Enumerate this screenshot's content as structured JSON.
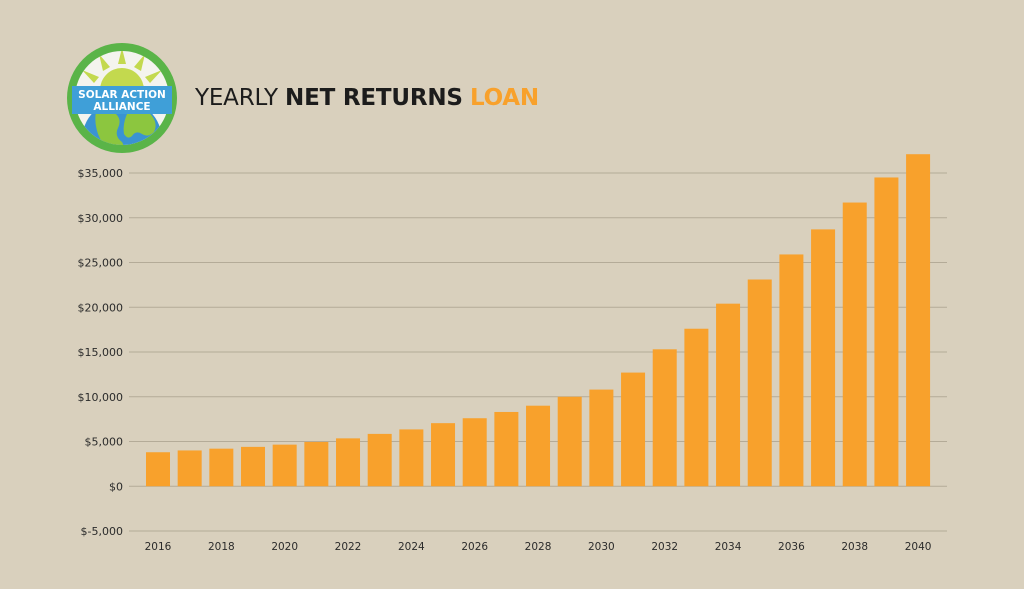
{
  "header": {
    "title_regular": "YEARLY",
    "title_bold": "NET RETURNS",
    "title_accent": "LOAN"
  },
  "logo": {
    "line1": "SOLAR ACTION",
    "line2": "ALLIANCE"
  },
  "colors": {
    "background": "#d9d0bd",
    "bar": "#f8a12c",
    "accent": "#f8a12c",
    "gridline": "#b4ab98",
    "logo_ring": "#5ab448",
    "logo_sun": "#c3d94e",
    "logo_globe": "#3a93d2",
    "logo_land": "#8cc63f"
  },
  "chart_data": {
    "type": "bar",
    "title": "YEARLY NET RETURNS LOAN",
    "xlabel": "",
    "ylabel": "",
    "categories": [
      "2016",
      "2017",
      "2018",
      "2019",
      "2020",
      "2021",
      "2022",
      "2023",
      "2024",
      "2025",
      "2026",
      "2027",
      "2028",
      "2029",
      "2030",
      "2031",
      "2032",
      "2033",
      "2034",
      "2035",
      "2036",
      "2037",
      "2038",
      "2039",
      "2040"
    ],
    "tick_labels_x": [
      "2016",
      "2018",
      "2020",
      "2022",
      "2024",
      "2026",
      "2028",
      "2030",
      "2032",
      "2034",
      "2036",
      "2038",
      "2040"
    ],
    "values": [
      3800,
      4000,
      4200,
      4400,
      4650,
      4950,
      5350,
      5850,
      6350,
      7050,
      7600,
      8300,
      9000,
      10000,
      10800,
      12700,
      15300,
      17600,
      20400,
      23100,
      25900,
      28700,
      31700,
      34500,
      37100
    ],
    "ylim": [
      -5000,
      35000
    ],
    "yticks": [
      35000,
      30000,
      25000,
      20000,
      15000,
      10000,
      5000,
      0,
      -5000
    ],
    "ytick_labels": [
      "$35,000",
      "$30,000",
      "$25,000",
      "$20,000",
      "$15,000",
      "$10,000",
      "$5,000",
      "$0",
      "$-5,000"
    ],
    "grid": true,
    "legend": "none"
  }
}
